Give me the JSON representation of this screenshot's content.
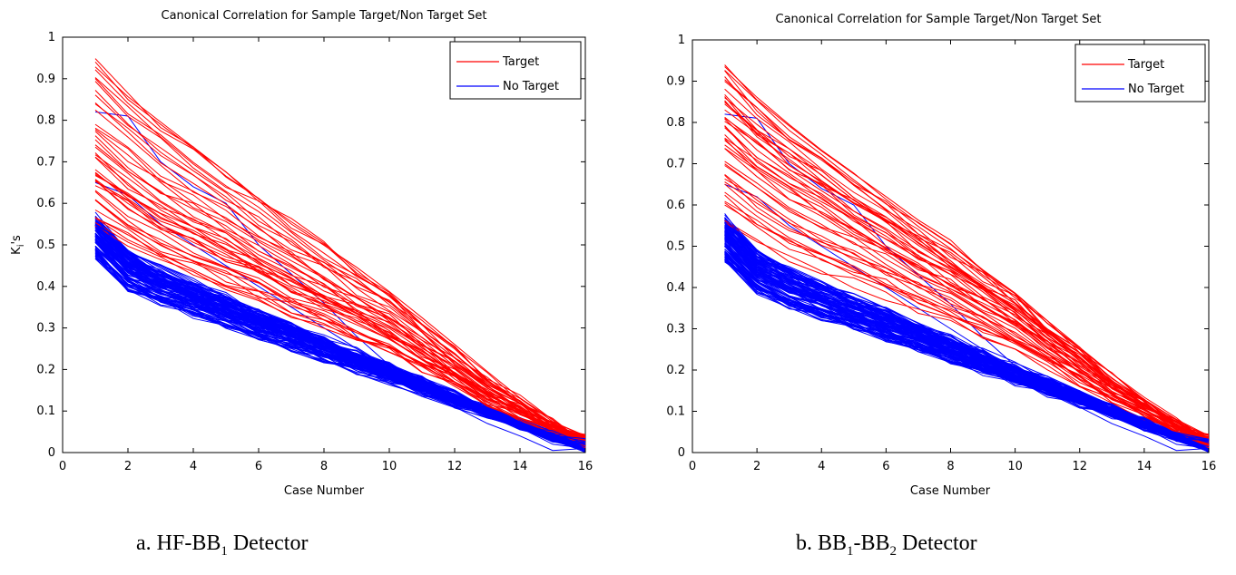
{
  "colors": {
    "target": "#ff0000",
    "no_target": "#0000ff"
  },
  "chart_data": [
    {
      "type": "line",
      "title": "Canonical Correlation for Sample Target/Non Target Set",
      "xlabel": "Case Number",
      "ylabel": "K_i's",
      "xlim": [
        0,
        16
      ],
      "ylim": [
        0,
        1
      ],
      "xticks": [
        0,
        2,
        4,
        6,
        8,
        10,
        12,
        14,
        16
      ],
      "yticks": [
        0,
        0.1,
        0.2,
        0.3,
        0.4,
        0.5,
        0.6,
        0.7,
        0.8,
        0.9,
        1
      ],
      "legend": {
        "location": "top-right",
        "entries": [
          "Target",
          "No Target"
        ]
      },
      "x": [
        1,
        2,
        3,
        4,
        5,
        6,
        7,
        8,
        9,
        10,
        11,
        12,
        13,
        14,
        15,
        16
      ],
      "series_groups": [
        {
          "name": "Target",
          "count": 45,
          "color": "#ff0000",
          "start_range": [
            0.55,
            0.95
          ],
          "end_range": [
            0.01,
            0.045
          ],
          "mean_series": [
            0.68,
            0.62,
            0.57,
            0.53,
            0.49,
            0.45,
            0.41,
            0.37,
            0.33,
            0.29,
            0.24,
            0.19,
            0.14,
            0.1,
            0.06,
            0.03
          ]
        },
        {
          "name": "No Target",
          "count": 90,
          "color": "#0000ff",
          "start_range": [
            0.47,
            0.57
          ],
          "end_range": [
            0.0,
            0.035
          ],
          "mean_series": [
            0.52,
            0.44,
            0.4,
            0.37,
            0.34,
            0.31,
            0.28,
            0.25,
            0.22,
            0.19,
            0.16,
            0.13,
            0.1,
            0.07,
            0.04,
            0.015
          ]
        }
      ],
      "outlier_series": [
        {
          "name": "No Target",
          "values": [
            0.82,
            0.81,
            0.7,
            0.64,
            0.6,
            0.5,
            0.43,
            0.36,
            0.28,
            0.21,
            0.17,
            0.13,
            0.09,
            0.06,
            0.02,
            0.01
          ]
        },
        {
          "name": "No Target",
          "values": [
            0.65,
            0.62,
            0.55,
            0.5,
            0.45,
            0.4,
            0.35,
            0.3,
            0.25,
            0.2,
            0.15,
            0.11,
            0.07,
            0.04,
            0.005,
            0.01
          ]
        }
      ]
    },
    {
      "type": "line",
      "title": "Canonical Correlation for Sample Target/Non Target Set",
      "xlabel": "Case Number",
      "ylabel": "",
      "xlim": [
        0,
        16
      ],
      "ylim": [
        0,
        1
      ],
      "xticks": [
        0,
        2,
        4,
        6,
        8,
        10,
        12,
        14,
        16
      ],
      "yticks": [
        0,
        0.1,
        0.2,
        0.3,
        0.4,
        0.5,
        0.6,
        0.7,
        0.8,
        0.9,
        1
      ],
      "legend": {
        "location": "top-right",
        "entries": [
          "Target",
          "No Target"
        ]
      },
      "x": [
        1,
        2,
        3,
        4,
        5,
        6,
        7,
        8,
        9,
        10,
        11,
        12,
        13,
        14,
        15,
        16
      ],
      "series_groups": [
        {
          "name": "Target",
          "count": 45,
          "color": "#ff0000",
          "start_range": [
            0.55,
            0.95
          ],
          "end_range": [
            0.01,
            0.045
          ],
          "mean_series": [
            0.68,
            0.62,
            0.57,
            0.53,
            0.49,
            0.45,
            0.41,
            0.37,
            0.33,
            0.29,
            0.24,
            0.19,
            0.14,
            0.1,
            0.06,
            0.03
          ]
        },
        {
          "name": "No Target",
          "count": 90,
          "color": "#0000ff",
          "start_range": [
            0.47,
            0.57
          ],
          "end_range": [
            0.0,
            0.035
          ],
          "mean_series": [
            0.52,
            0.44,
            0.4,
            0.37,
            0.34,
            0.31,
            0.28,
            0.25,
            0.22,
            0.19,
            0.16,
            0.13,
            0.1,
            0.07,
            0.04,
            0.015
          ]
        }
      ],
      "outlier_series": [
        {
          "name": "No Target",
          "values": [
            0.82,
            0.81,
            0.7,
            0.64,
            0.6,
            0.5,
            0.43,
            0.36,
            0.28,
            0.21,
            0.17,
            0.13,
            0.09,
            0.06,
            0.02,
            0.01
          ]
        },
        {
          "name": "No Target",
          "values": [
            0.65,
            0.62,
            0.55,
            0.5,
            0.45,
            0.4,
            0.35,
            0.3,
            0.25,
            0.2,
            0.15,
            0.11,
            0.07,
            0.04,
            0.005,
            0.01
          ]
        }
      ]
    }
  ],
  "captions": [
    {
      "prefix": "a. HF-BB",
      "sub1": "1",
      "mid": "",
      "sub2": "",
      "suffix": " Detector"
    },
    {
      "prefix": "b. BB",
      "sub1": "1",
      "mid": "-BB",
      "sub2": "2",
      "suffix": " Detector"
    }
  ]
}
